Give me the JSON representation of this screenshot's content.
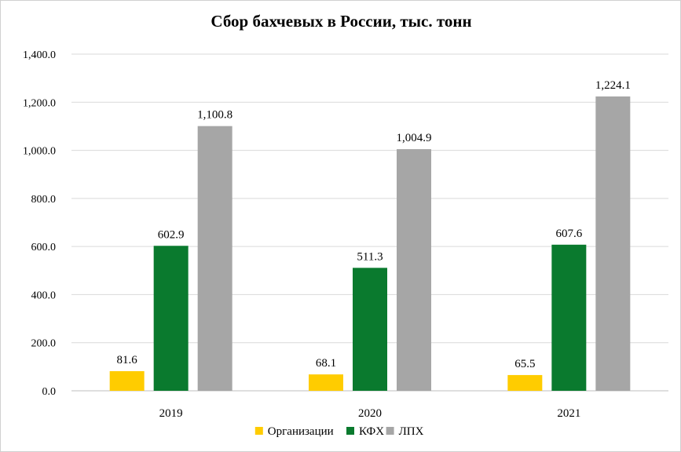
{
  "chart_data": {
    "type": "bar",
    "title": "Сбор бахчевых в России, тыс. тонн",
    "categories": [
      "2019",
      "2020",
      "2021"
    ],
    "series": [
      {
        "name": "Организации",
        "values": [
          81.6,
          68.1,
          65.5
        ],
        "value_labels": [
          "81.6",
          "68.1",
          "65.5"
        ],
        "color": "#FFCC00"
      },
      {
        "name": "КФХ",
        "values": [
          602.9,
          511.3,
          607.6
        ],
        "value_labels": [
          "602.9",
          "511.3",
          "607.6"
        ],
        "color": "#0A7A2E"
      },
      {
        "name": "ЛПХ",
        "values": [
          1100.8,
          1004.9,
          1224.1
        ],
        "value_labels": [
          "1,100.8",
          "1,004.9",
          "1,224.1"
        ],
        "color": "#A6A6A6"
      }
    ],
    "ylim": [
      0,
      1400
    ],
    "yticks": [
      0,
      200,
      400,
      600,
      800,
      1000,
      1200,
      1400
    ],
    "ytick_labels": [
      "0.0",
      "200.0",
      "400.0",
      "600.0",
      "800.0",
      "1,000.0",
      "1,200.0",
      "1,400.0"
    ],
    "grid": true,
    "legend_position": "bottom"
  }
}
